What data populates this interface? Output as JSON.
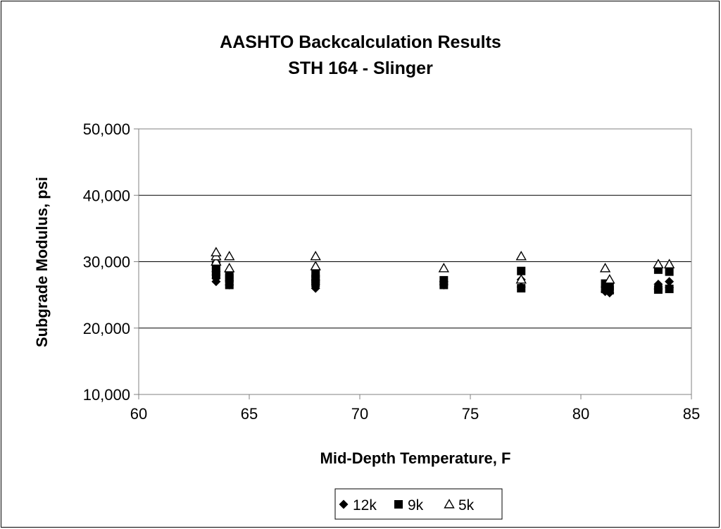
{
  "chart_data": {
    "type": "scatter",
    "title": "AASHTO Backcalculation Results",
    "subtitle": "STH 164 - Slinger",
    "xlabel": "Mid-Depth Temperature, F",
    "ylabel": "Subgrade Modulus, psi",
    "xlim": [
      60,
      85
    ],
    "ylim": [
      10000,
      50000
    ],
    "xticks": [
      60,
      65,
      70,
      75,
      80,
      85
    ],
    "yticks": [
      10000,
      20000,
      30000,
      40000,
      50000
    ],
    "xtick_labels": [
      "60",
      "65",
      "70",
      "75",
      "80",
      "85"
    ],
    "ytick_labels": [
      "10,000",
      "20,000",
      "30,000",
      "40,000",
      "50,000"
    ],
    "grid": "horizontal major",
    "legend_position": "bottom",
    "series": [
      {
        "name": "12k",
        "marker": "diamond",
        "color": "#000000",
        "points": [
          [
            63.5,
            27000
          ],
          [
            63.5,
            27500
          ],
          [
            63.5,
            28000
          ],
          [
            63.5,
            28500
          ],
          [
            64.1,
            26500
          ],
          [
            64.1,
            27200
          ],
          [
            68.0,
            26000
          ],
          [
            68.0,
            26600
          ],
          [
            68.0,
            27200
          ],
          [
            73.8,
            26500
          ],
          [
            73.8,
            27000
          ],
          [
            77.3,
            26200
          ],
          [
            77.3,
            27300
          ],
          [
            81.1,
            25500
          ],
          [
            81.1,
            26200
          ],
          [
            81.3,
            25300
          ],
          [
            81.3,
            26700
          ],
          [
            83.5,
            25900
          ],
          [
            83.5,
            26600
          ],
          [
            84.0,
            26100
          ],
          [
            84.0,
            27000
          ]
        ]
      },
      {
        "name": "9k",
        "marker": "square",
        "color": "#000000",
        "points": [
          [
            63.5,
            28000
          ],
          [
            63.5,
            28500
          ],
          [
            63.5,
            29000
          ],
          [
            63.5,
            29500
          ],
          [
            64.1,
            26500
          ],
          [
            64.1,
            27500
          ],
          [
            64.1,
            28000
          ],
          [
            68.0,
            26800
          ],
          [
            68.0,
            27400
          ],
          [
            68.0,
            28200
          ],
          [
            73.8,
            26500
          ],
          [
            73.8,
            27200
          ],
          [
            77.3,
            26000
          ],
          [
            77.3,
            28600
          ],
          [
            81.1,
            25900
          ],
          [
            81.1,
            26700
          ],
          [
            81.3,
            25700
          ],
          [
            81.3,
            26300
          ],
          [
            83.5,
            25800
          ],
          [
            83.5,
            28800
          ],
          [
            84.0,
            25900
          ],
          [
            84.0,
            28500
          ]
        ]
      },
      {
        "name": "5k",
        "marker": "triangle-open",
        "color": "#000000",
        "points": [
          [
            63.5,
            30000
          ],
          [
            63.5,
            30800
          ],
          [
            63.5,
            31400
          ],
          [
            64.1,
            29000
          ],
          [
            64.1,
            30800
          ],
          [
            68.0,
            29300
          ],
          [
            68.0,
            30800
          ],
          [
            73.8,
            29000
          ],
          [
            77.3,
            27300
          ],
          [
            77.3,
            30800
          ],
          [
            81.1,
            29000
          ],
          [
            81.3,
            27300
          ],
          [
            83.5,
            29600
          ],
          [
            84.0,
            29600
          ]
        ]
      }
    ]
  }
}
